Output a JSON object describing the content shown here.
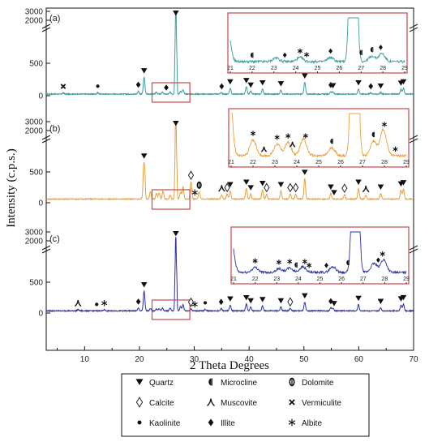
{
  "chart_data": {
    "type": "line",
    "xlabel": "2 Theta Degrees",
    "ylabel": "Intensity (c.p.s.)",
    "xlim": [
      3,
      70
    ],
    "x_ticks": [
      "10",
      "20",
      "30",
      "40",
      "50",
      "60",
      "70"
    ],
    "y_ticks": [
      "0",
      "500",
      "2000",
      "3000"
    ],
    "axis_break": true,
    "grid": false,
    "legend_position": "bottom",
    "legend": [
      {
        "symbol": "quartz",
        "label": "Quartz"
      },
      {
        "symbol": "microcline",
        "label": "Microcline"
      },
      {
        "symbol": "dolomite",
        "label": "Dolomite"
      },
      {
        "symbol": "calcite",
        "label": "Calcite"
      },
      {
        "symbol": "muscovite",
        "label": "Muscovite"
      },
      {
        "symbol": "vermiculite",
        "label": "Vermiculite"
      },
      {
        "symbol": "kaolinite",
        "label": "Kaolinite"
      },
      {
        "symbol": "illite",
        "label": "Illite"
      },
      {
        "symbol": "albite",
        "label": "Albite"
      }
    ],
    "panels": [
      {
        "label": "(a)",
        "color": "#3b9e9a",
        "baseline": 25,
        "peaks": [
          [
            6.1,
            18
          ],
          [
            12.4,
            22
          ],
          [
            19.8,
            45
          ],
          [
            20.85,
            260
          ],
          [
            23.1,
            28
          ],
          [
            24.2,
            30
          ],
          [
            25.6,
            30
          ],
          [
            26.64,
            3000
          ],
          [
            27.5,
            40
          ],
          [
            27.95,
            60
          ],
          [
            34.9,
            25
          ],
          [
            36.55,
            90
          ],
          [
            39.5,
            110
          ],
          [
            40.3,
            40
          ],
          [
            42.45,
            75
          ],
          [
            45.8,
            60
          ],
          [
            50.15,
            180
          ],
          [
            54.9,
            40
          ],
          [
            55.3,
            30
          ],
          [
            59.95,
            75
          ],
          [
            62.2,
            20
          ],
          [
            64.0,
            25
          ],
          [
            67.7,
            70
          ],
          [
            68.15,
            90
          ]
        ],
        "markers": [
          [
            6.1,
            "vermiculite"
          ],
          [
            12.4,
            "kaolinite"
          ],
          [
            19.8,
            "illite"
          ],
          [
            20.85,
            "quartz"
          ],
          [
            24.9,
            "illite"
          ],
          [
            26.64,
            "quartz"
          ],
          [
            35.0,
            "illite"
          ],
          [
            36.55,
            "quartz"
          ],
          [
            39.5,
            "quartz"
          ],
          [
            40.3,
            "quartz"
          ],
          [
            42.45,
            "quartz"
          ],
          [
            45.8,
            "quartz"
          ],
          [
            50.15,
            "quartz"
          ],
          [
            54.9,
            "illite"
          ],
          [
            55.3,
            "quartz"
          ],
          [
            59.95,
            "quartz"
          ],
          [
            62.2,
            "illite"
          ],
          [
            64.0,
            "quartz"
          ],
          [
            67.7,
            "quartz"
          ],
          [
            68.15,
            "quartz"
          ]
        ],
        "inset_markers": [
          [
            22.0,
            "microcline"
          ],
          [
            23.5,
            "illite"
          ],
          [
            24.2,
            "albite"
          ],
          [
            24.5,
            "albite"
          ],
          [
            25.6,
            "illite"
          ],
          [
            27.0,
            "microcline"
          ],
          [
            27.5,
            "microcline"
          ],
          [
            27.9,
            "illite"
          ]
        ]
      },
      {
        "label": "(b)",
        "color": "#e8a03c",
        "baseline": 60,
        "peaks": [
          [
            20.85,
            900
          ],
          [
            22.0,
            120
          ],
          [
            23.1,
            90
          ],
          [
            23.6,
            100
          ],
          [
            24.3,
            130
          ],
          [
            25.6,
            60
          ],
          [
            26.64,
            3100
          ],
          [
            27.5,
            110
          ],
          [
            27.95,
            200
          ],
          [
            29.4,
            280
          ],
          [
            30.9,
            120
          ],
          [
            35.0,
            70
          ],
          [
            36.0,
            80
          ],
          [
            36.55,
            130
          ],
          [
            39.5,
            170
          ],
          [
            40.3,
            80
          ],
          [
            42.45,
            150
          ],
          [
            43.2,
            80
          ],
          [
            45.8,
            130
          ],
          [
            47.5,
            80
          ],
          [
            48.5,
            80
          ],
          [
            50.15,
            330
          ],
          [
            54.9,
            90
          ],
          [
            57.4,
            70
          ],
          [
            59.95,
            170
          ],
          [
            61.3,
            60
          ],
          [
            64.0,
            90
          ],
          [
            67.7,
            140
          ],
          [
            68.15,
            160
          ]
        ],
        "markers": [
          [
            20.85,
            "quartz"
          ],
          [
            26.64,
            "quartz"
          ],
          [
            29.4,
            "calcite"
          ],
          [
            30.1,
            "albite"
          ],
          [
            30.9,
            "dolomite"
          ],
          [
            35.0,
            "muscovite"
          ],
          [
            36.0,
            "calcite"
          ],
          [
            36.55,
            "quartz"
          ],
          [
            39.5,
            "quartz"
          ],
          [
            40.3,
            "quartz"
          ],
          [
            42.45,
            "quartz"
          ],
          [
            43.2,
            "calcite"
          ],
          [
            45.8,
            "quartz"
          ],
          [
            47.5,
            "calcite"
          ],
          [
            48.5,
            "calcite"
          ],
          [
            50.15,
            "quartz"
          ],
          [
            54.9,
            "quartz"
          ],
          [
            55.5,
            "quartz"
          ],
          [
            57.4,
            "calcite"
          ],
          [
            59.95,
            "quartz"
          ],
          [
            61.3,
            "muscovite"
          ],
          [
            64.0,
            "quartz"
          ],
          [
            67.7,
            "quartz"
          ],
          [
            68.15,
            "quartz"
          ]
        ],
        "inset_markers": [
          [
            22.0,
            "albite"
          ],
          [
            22.5,
            "muscovite"
          ],
          [
            23.1,
            "albite"
          ],
          [
            23.6,
            "albite"
          ],
          [
            23.8,
            "muscovite"
          ],
          [
            24.4,
            "albite"
          ],
          [
            25.6,
            "microcline"
          ],
          [
            27.5,
            "microcline"
          ],
          [
            28.0,
            "albite"
          ],
          [
            28.5,
            "albite"
          ]
        ]
      },
      {
        "label": "(c)",
        "color": "#2b2f9e",
        "baseline": 35,
        "peaks": [
          [
            8.8,
            20
          ],
          [
            13.6,
            20
          ],
          [
            19.8,
            45
          ],
          [
            20.85,
            320
          ],
          [
            22.0,
            40
          ],
          [
            23.1,
            30
          ],
          [
            23.6,
            35
          ],
          [
            24.2,
            45
          ],
          [
            25.6,
            45
          ],
          [
            26.64,
            2400
          ],
          [
            27.5,
            70
          ],
          [
            27.95,
            100
          ],
          [
            29.4,
            35
          ],
          [
            32.0,
            25
          ],
          [
            34.9,
            40
          ],
          [
            36.55,
            90
          ],
          [
            39.5,
            110
          ],
          [
            40.3,
            60
          ],
          [
            42.45,
            80
          ],
          [
            45.8,
            60
          ],
          [
            47.5,
            40
          ],
          [
            50.15,
            140
          ],
          [
            54.9,
            50
          ],
          [
            55.3,
            40
          ],
          [
            59.95,
            100
          ],
          [
            64.0,
            50
          ],
          [
            67.7,
            90
          ],
          [
            68.15,
            110
          ]
        ],
        "markers": [
          [
            8.8,
            "muscovite"
          ],
          [
            13.6,
            "albite"
          ],
          [
            12.2,
            "kaolinite"
          ],
          [
            19.8,
            "illite"
          ],
          [
            20.85,
            "quartz"
          ],
          [
            26.64,
            "quartz"
          ],
          [
            29.4,
            "calcite"
          ],
          [
            30.1,
            "albite"
          ],
          [
            32.0,
            "kaolinite"
          ],
          [
            34.9,
            "illite"
          ],
          [
            36.55,
            "quartz"
          ],
          [
            39.5,
            "quartz"
          ],
          [
            40.3,
            "quartz"
          ],
          [
            42.45,
            "quartz"
          ],
          [
            45.8,
            "quartz"
          ],
          [
            47.5,
            "calcite"
          ],
          [
            50.15,
            "quartz"
          ],
          [
            54.9,
            "illite"
          ],
          [
            55.5,
            "quartz"
          ],
          [
            59.95,
            "quartz"
          ],
          [
            64.0,
            "quartz"
          ],
          [
            67.7,
            "quartz"
          ],
          [
            68.15,
            "quartz"
          ]
        ],
        "inset_markers": [
          [
            22.0,
            "albite"
          ],
          [
            23.1,
            "albite"
          ],
          [
            23.6,
            "albite"
          ],
          [
            23.9,
            "microcline"
          ],
          [
            24.3,
            "albite"
          ],
          [
            24.5,
            "albite"
          ],
          [
            25.3,
            "illite"
          ],
          [
            26.3,
            "microcline"
          ],
          [
            27.7,
            "illite"
          ],
          [
            27.9,
            "albite"
          ]
        ]
      }
    ],
    "inset": {
      "xlim": [
        21,
        29
      ],
      "x_ticks": [
        "21",
        "22",
        "23",
        "24",
        "25",
        "26",
        "27",
        "28",
        "29"
      ],
      "highlight_xrange": [
        22.3,
        29.2
      ]
    }
  }
}
